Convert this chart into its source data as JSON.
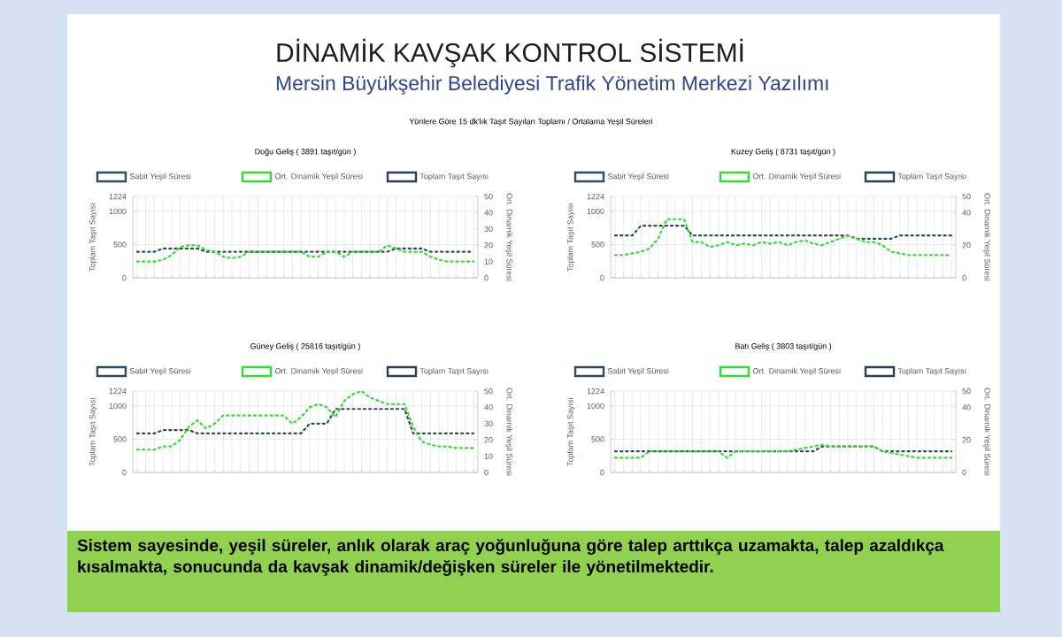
{
  "chart_data": [
    {
      "type": "other",
      "title": "DİNAMİK KAVŞAK KONTROL SİSTEMİ",
      "subtitle": "Mersin Büyükşehir Belediyesi Trafik Yönetim Merkezi Yazılımı",
      "annotations": [
        "Yönlere Göre 15 dk'lık Taşıt Sayıları Toplamı / Ortalama Yeşil Süreleri",
        "Sistem sayesinde, yeşil süreler, anlık olarak araç yoğunluğuna göre talep arttıkça uzamakta, talep azaldıkça kısalmakta, sonucunda da kavşak dinamik/değişken süreler ile yönetilmektedir."
      ]
    },
    {
      "type": "line",
      "title": "Doğu Geliş ( 3891 taşıt/gün )",
      "ylabel": "Toplam Taşıt Sayısı",
      "y2label": "Ort. Dinamik Yeşil Süresi",
      "categories": [
        null,
        null,
        null,
        null,
        null,
        null,
        null,
        null,
        null,
        null,
        null,
        null,
        null,
        null,
        null,
        null,
        null,
        null,
        null,
        null,
        null,
        null,
        null,
        null,
        null,
        null,
        null,
        null,
        null,
        null,
        null,
        null,
        null,
        null,
        null,
        null,
        null,
        null,
        null,
        null
      ],
      "ylim": [
        0,
        1224
      ],
      "yticks": [
        0,
        500,
        1000,
        1224
      ],
      "y2lim": [
        0,
        50
      ],
      "y2ticks": [
        0,
        10,
        20,
        30,
        40,
        50
      ],
      "grid": true,
      "legend": "top",
      "line_style": "dotted",
      "series": [
        {
          "name": "Sabit Yeşil Süresi",
          "color": "#34495e",
          "axis": "y2",
          "values": [
            16,
            16,
            16,
            18,
            18,
            18,
            18,
            18,
            16,
            16,
            16,
            16,
            16,
            16,
            16,
            16,
            16,
            16,
            16,
            16,
            16,
            16,
            16,
            16,
            16,
            16,
            16,
            16,
            16,
            16,
            18,
            18,
            18,
            18,
            16,
            16,
            16,
            16,
            16,
            16
          ]
        },
        {
          "name": "Ort. Dinamik Yeşil Süresi",
          "color": "#33dd33",
          "axis": "y2",
          "values": [
            10,
            10,
            10,
            11,
            14,
            19,
            20,
            20,
            17,
            16,
            13,
            12,
            13,
            16,
            16,
            16,
            16,
            16,
            16,
            16,
            13,
            13,
            16,
            16,
            13,
            16,
            16,
            16,
            16,
            20,
            18,
            16,
            16,
            16,
            13,
            11,
            10,
            10,
            10,
            10
          ]
        },
        {
          "name": "Toplam Taşıt Sayısı",
          "color": "#2c3e50",
          "values": [
            null,
            null,
            null,
            null,
            null,
            null,
            null,
            null,
            null,
            null,
            null,
            null,
            null,
            null,
            null,
            null,
            null,
            null,
            null,
            null,
            null,
            null,
            null,
            null,
            null,
            null,
            null,
            null,
            null,
            null,
            null,
            null,
            null,
            null,
            null,
            null,
            null,
            null,
            null,
            null
          ]
        }
      ]
    },
    {
      "type": "line",
      "title": "Kuzey Geliş ( 8731 taşıt/gün )",
      "ylabel": "Toplam Taşıt Sayısı",
      "y2label": "Ort. Dinamik Yeşil Süresi",
      "categories": [
        null,
        null,
        null,
        null,
        null,
        null,
        null,
        null,
        null,
        null,
        null,
        null,
        null,
        null,
        null,
        null,
        null,
        null,
        null,
        null,
        null,
        null,
        null,
        null,
        null,
        null,
        null,
        null,
        null,
        null,
        null,
        null,
        null,
        null,
        null,
        null,
        null,
        null,
        null,
        null
      ],
      "ylim": [
        0,
        1224
      ],
      "yticks": [
        0,
        500,
        1000,
        1224
      ],
      "y2lim": [
        0,
        50
      ],
      "y2ticks": [
        0,
        20,
        40,
        50
      ],
      "grid": true,
      "legend": "top",
      "line_style": "dotted",
      "series": [
        {
          "name": "Sabit Yeşil Süresi",
          "color": "#34495e",
          "axis": "y2",
          "values": [
            26,
            26,
            26,
            32,
            32,
            32,
            32,
            32,
            32,
            26,
            26,
            26,
            26,
            26,
            26,
            26,
            26,
            26,
            26,
            26,
            26,
            26,
            26,
            26,
            26,
            26,
            26,
            26,
            24,
            24,
            24,
            24,
            24,
            26,
            26,
            26,
            26,
            26,
            26,
            26
          ]
        },
        {
          "name": "Ort. Dinamik Yeşil Süresi",
          "color": "#33dd33",
          "axis": "y2",
          "values": [
            14,
            14,
            15,
            16,
            18,
            24,
            36,
            36,
            36,
            22,
            22,
            19,
            20,
            22,
            20,
            21,
            20,
            22,
            21,
            22,
            20,
            22,
            23,
            21,
            20,
            22,
            24,
            26,
            24,
            22,
            22,
            20,
            16,
            15,
            14,
            14,
            14,
            14,
            14,
            14
          ]
        },
        {
          "name": "Toplam Taşıt Sayısı",
          "color": "#2c3e50",
          "values": [
            null,
            null,
            null,
            null,
            null,
            null,
            null,
            null,
            null,
            null,
            null,
            null,
            null,
            null,
            null,
            null,
            null,
            null,
            null,
            null,
            null,
            null,
            null,
            null,
            null,
            null,
            null,
            null,
            null,
            null,
            null,
            null,
            null,
            null,
            null,
            null,
            null,
            null,
            null,
            null
          ]
        }
      ]
    },
    {
      "type": "line",
      "title": "Güney Geliş ( 25816 taşıt/gün )",
      "ylabel": "Toplam Taşıt Sayısı",
      "y2label": "Ort. Dinamik Yeşil Süresi",
      "categories": [
        null,
        null,
        null,
        null,
        null,
        null,
        null,
        null,
        null,
        null,
        null,
        null,
        null,
        null,
        null,
        null,
        null,
        null,
        null,
        null,
        null,
        null,
        null,
        null,
        null,
        null,
        null,
        null,
        null,
        null,
        null,
        null,
        null,
        null,
        null,
        null,
        null,
        null,
        null,
        null
      ],
      "ylim": [
        0,
        1224
      ],
      "yticks": [
        0,
        500,
        1000,
        1224
      ],
      "y2lim": [
        0,
        50
      ],
      "y2ticks": [
        0,
        10,
        20,
        30,
        40,
        50
      ],
      "grid": true,
      "legend": "top",
      "line_style": "dotted",
      "series": [
        {
          "name": "Sabit Yeşil Süresi",
          "color": "#34495e",
          "axis": "y2",
          "values": [
            24,
            24,
            24,
            26,
            26,
            26,
            26,
            24,
            24,
            24,
            24,
            24,
            24,
            24,
            24,
            24,
            24,
            24,
            24,
            24,
            30,
            30,
            30,
            39,
            39,
            39,
            39,
            39,
            39,
            39,
            39,
            39,
            24,
            24,
            24,
            24,
            24,
            24,
            24,
            24
          ]
        },
        {
          "name": "Ort. Dinamik Yeşil Süresi",
          "color": "#33dd33",
          "axis": "y2",
          "values": [
            14,
            14,
            14,
            16,
            16,
            20,
            28,
            32,
            27,
            30,
            35,
            35,
            35,
            35,
            35,
            35,
            35,
            35,
            30,
            34,
            40,
            42,
            40,
            34,
            44,
            48,
            50,
            46,
            44,
            42,
            42,
            42,
            28,
            19,
            17,
            16,
            16,
            15,
            15,
            15
          ]
        },
        {
          "name": "Toplam Taşıt Sayısı",
          "color": "#2c3e50",
          "values": [
            null,
            null,
            null,
            null,
            null,
            null,
            null,
            null,
            null,
            null,
            null,
            null,
            null,
            null,
            null,
            null,
            null,
            null,
            null,
            null,
            null,
            null,
            null,
            null,
            null,
            null,
            null,
            null,
            null,
            null,
            null,
            null,
            null,
            null,
            null,
            null,
            null,
            null,
            null,
            null
          ]
        }
      ]
    },
    {
      "type": "line",
      "title": "Batı Geliş ( 3803 taşıt/gün )",
      "ylabel": "Toplam Taşıt Sayısı",
      "y2label": "Ort. Dinamik Yeşil Süresi",
      "categories": [
        null,
        null,
        null,
        null,
        null,
        null,
        null,
        null,
        null,
        null,
        null,
        null,
        null,
        null,
        null,
        null,
        null,
        null,
        null,
        null,
        null,
        null,
        null,
        null,
        null,
        null,
        null,
        null,
        null,
        null,
        null,
        null,
        null,
        null,
        null,
        null,
        null,
        null,
        null,
        null
      ],
      "ylim": [
        0,
        1224
      ],
      "yticks": [
        0,
        500,
        1000,
        1224
      ],
      "y2lim": [
        0,
        50
      ],
      "y2ticks": [
        0,
        20,
        40,
        50
      ],
      "grid": true,
      "legend": "top",
      "line_style": "dotted",
      "series": [
        {
          "name": "Sabit Yeşil Süresi",
          "color": "#34495e",
          "axis": "y2",
          "values": [
            13,
            13,
            13,
            13,
            13,
            13,
            13,
            13,
            13,
            13,
            13,
            13,
            13,
            13,
            13,
            13,
            13,
            13,
            13,
            13,
            13,
            13,
            13,
            13,
            16,
            16,
            16,
            16,
            16,
            16,
            16,
            13,
            13,
            13,
            13,
            13,
            13,
            13,
            13,
            13
          ]
        },
        {
          "name": "Ort. Dinamik Yeşil Süresi",
          "color": "#33dd33",
          "axis": "y2",
          "values": [
            9,
            9,
            9,
            9,
            13,
            13,
            13,
            13,
            13,
            13,
            13,
            13,
            13,
            9,
            13,
            13,
            13,
            13,
            13,
            13,
            13,
            14,
            15,
            16,
            17,
            16,
            16,
            16,
            16,
            16,
            16,
            13,
            12,
            11,
            10,
            9,
            9,
            9,
            9,
            9
          ]
        },
        {
          "name": "Toplam Taşıt Sayısı",
          "color": "#2c3e50",
          "values": [
            null,
            null,
            null,
            null,
            null,
            null,
            null,
            null,
            null,
            null,
            null,
            null,
            null,
            null,
            null,
            null,
            null,
            null,
            null,
            null,
            null,
            null,
            null,
            null,
            null,
            null,
            null,
            null,
            null,
            null,
            null,
            null,
            null,
            null,
            null,
            null,
            null,
            null,
            null,
            null
          ]
        }
      ]
    }
  ]
}
